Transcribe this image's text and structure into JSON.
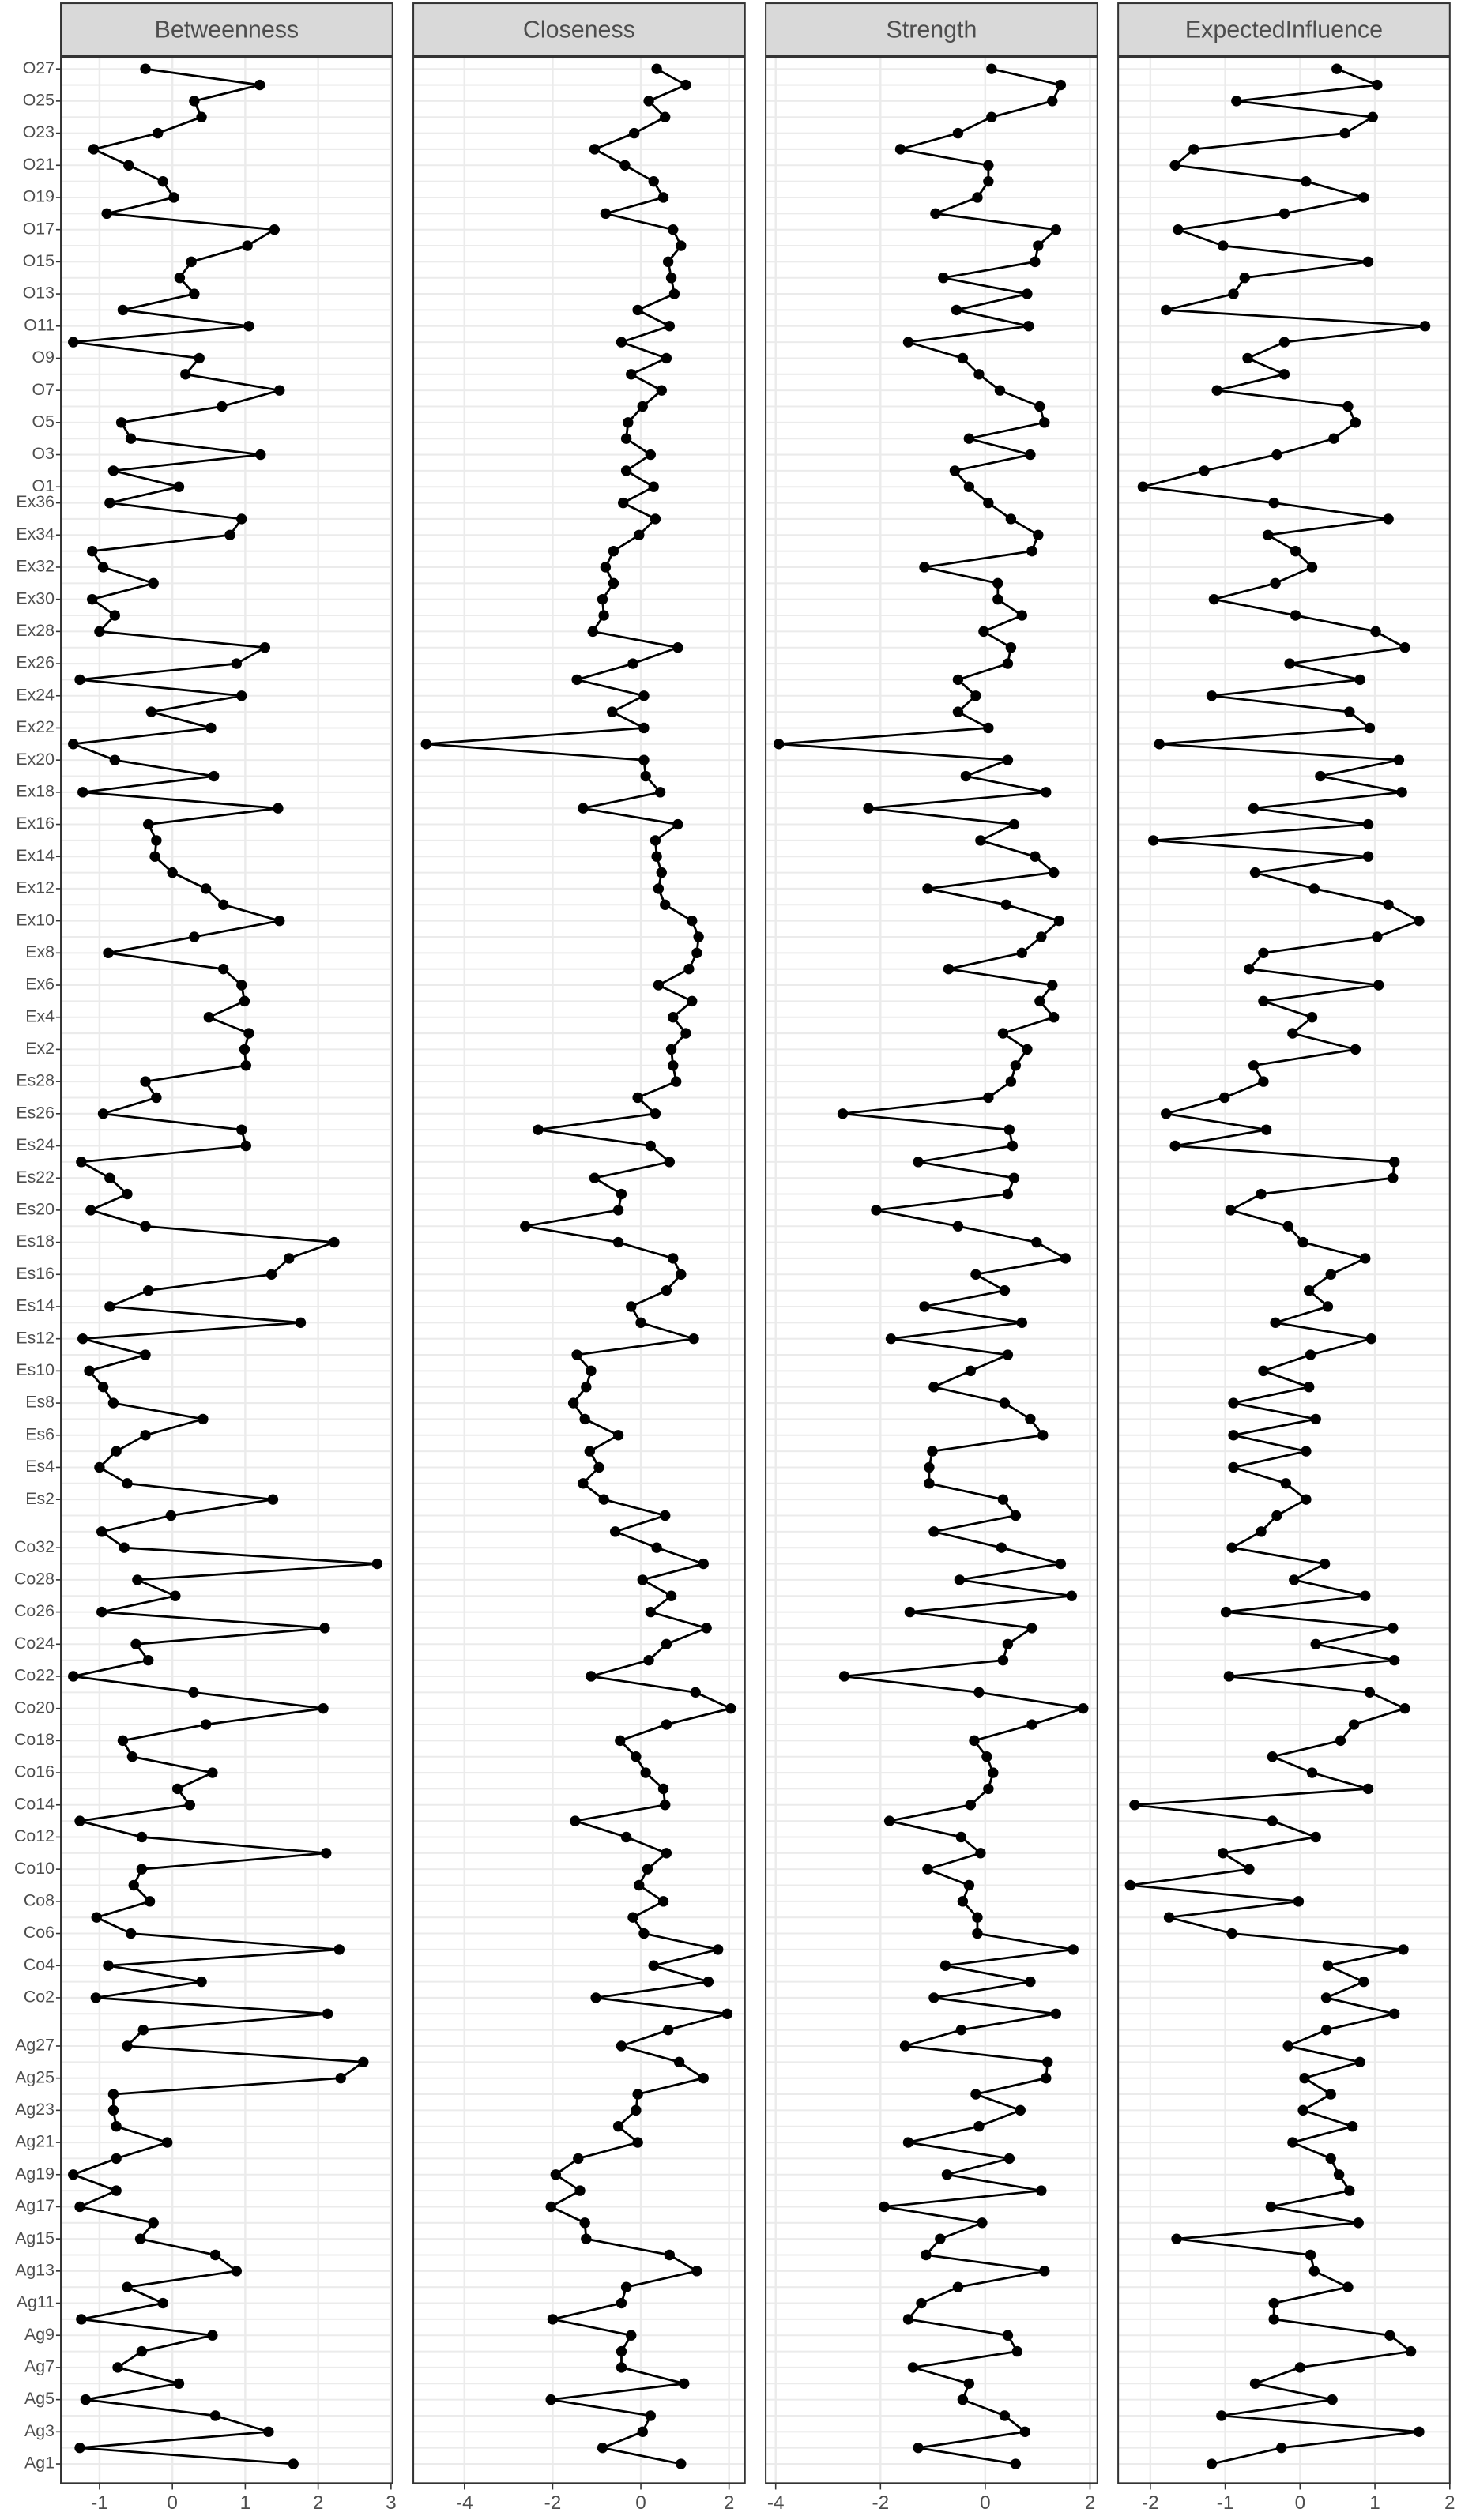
{
  "chart_data": {
    "type": "line",
    "color": "#000000",
    "grid": true,
    "categories": [
      "O27",
      null,
      "O25",
      null,
      "O23",
      null,
      "O21",
      null,
      "O19",
      null,
      "O17",
      null,
      "O15",
      null,
      "O13",
      null,
      "O11",
      null,
      "O9",
      null,
      "O7",
      null,
      "O5",
      null,
      "O3",
      null,
      "O1",
      "Ex36",
      null,
      "Ex34",
      null,
      "Ex32",
      null,
      "Ex30",
      null,
      "Ex28",
      null,
      "Ex26",
      null,
      "Ex24",
      null,
      "Ex22",
      null,
      "Ex20",
      null,
      "Ex18",
      null,
      "Ex16",
      null,
      "Ex14",
      null,
      "Ex12",
      null,
      "Ex10",
      null,
      "Ex8",
      null,
      "Ex6",
      null,
      "Ex4",
      null,
      "Ex2",
      null,
      "Es28",
      null,
      "Es26",
      null,
      "Es24",
      null,
      "Es22",
      null,
      "Es20",
      null,
      "Es18",
      null,
      "Es16",
      null,
      "Es14",
      null,
      "Es12",
      null,
      "Es10",
      null,
      "Es8",
      null,
      "Es6",
      null,
      "Es4",
      null,
      "Es2",
      null,
      null,
      "Co32",
      null,
      "Co28",
      null,
      "Co26",
      null,
      "Co24",
      null,
      "Co22",
      null,
      "Co20",
      null,
      "Co18",
      null,
      "Co16",
      null,
      "Co14",
      null,
      "Co12",
      null,
      "Co10",
      null,
      "Co8",
      null,
      "Co6",
      null,
      "Co4",
      null,
      "Co2",
      null,
      null,
      "Ag27",
      null,
      "Ag25",
      null,
      "Ag23",
      null,
      "Ag21",
      null,
      "Ag19",
      null,
      "Ag17",
      null,
      "Ag15",
      null,
      "Ag13",
      null,
      "Ag11",
      null,
      "Ag9",
      null,
      "Ag7",
      null,
      "Ag5",
      null,
      "Ag3",
      null,
      "Ag1"
    ],
    "series": [
      {
        "name": "Betweenness",
        "xlim": [
          -1.53,
          3.02
        ],
        "xticks": [
          -1,
          0,
          1,
          2,
          3
        ],
        "values": [
          -0.37,
          1.2,
          0.3,
          0.4,
          -0.2,
          -1.08,
          -0.6,
          -0.13,
          0.02,
          -0.9,
          1.4,
          1.03,
          0.26,
          0.1,
          0.3,
          -0.68,
          1.05,
          -1.36,
          0.37,
          0.18,
          1.47,
          0.68,
          -0.7,
          -0.57,
          1.21,
          -0.81,
          0.09,
          -0.86,
          0.95,
          0.79,
          -1.1,
          -0.95,
          -0.26,
          -1.1,
          -0.79,
          -1.0,
          1.27,
          0.88,
          -1.27,
          0.95,
          -0.29,
          0.53,
          -1.36,
          -0.79,
          0.57,
          -1.23,
          1.45,
          -0.33,
          -0.22,
          -0.24,
          0,
          0.46,
          0.7,
          1.47,
          0.3,
          -0.88,
          0.7,
          0.95,
          0.99,
          0.5,
          1.05,
          0.99,
          1.01,
          -0.37,
          -0.22,
          -0.95,
          0.95,
          1.01,
          -1.25,
          -0.86,
          -0.62,
          -1.12,
          -0.37,
          2.22,
          1.6,
          1.36,
          -0.33,
          -0.86,
          1.76,
          -1.23,
          -0.37,
          -1.14,
          -0.95,
          -0.81,
          0.42,
          -0.37,
          -0.77,
          -1.0,
          -0.62,
          1.38,
          -0.02,
          -0.97,
          -0.66,
          2.81,
          -0.48,
          0.04,
          -0.97,
          2.09,
          -0.5,
          -0.33,
          -1.36,
          0.29,
          2.07,
          0.46,
          -0.68,
          -0.55,
          0.55,
          0.07,
          0.24,
          -1.27,
          -0.42,
          2.11,
          -0.42,
          -0.53,
          -0.31,
          -1.04,
          -0.57,
          2.29,
          -0.88,
          0.4,
          -1.05,
          2.13,
          -0.4,
          -0.62,
          2.62,
          2.31,
          -0.81,
          -0.81,
          -0.77,
          -0.07,
          -0.77,
          -1.36,
          -0.77,
          -1.27,
          -0.26,
          -0.44,
          0.59,
          0.88,
          -0.62,
          -0.13,
          -1.25,
          0.55,
          -0.42,
          -0.75,
          0.09,
          -1.19,
          0.59,
          1.32,
          -1.27,
          1.66
        ]
      },
      {
        "name": "Closeness",
        "xlim": [
          -5.16,
          2.36
        ],
        "xticks": [
          -4,
          -2,
          0,
          2
        ],
        "values": [
          0.36,
          1.02,
          0.18,
          0.55,
          -0.15,
          -1.05,
          -0.36,
          0.29,
          0.51,
          -0.8,
          0.73,
          0.91,
          0.62,
          0.69,
          0.76,
          -0.07,
          0.65,
          -0.44,
          0.58,
          -0.22,
          0.47,
          0.04,
          -0.29,
          -0.33,
          0.22,
          -0.33,
          0.29,
          -0.4,
          0.33,
          -0.04,
          -0.62,
          -0.8,
          -0.62,
          -0.87,
          -0.84,
          -1.09,
          0.84,
          -0.18,
          -1.45,
          0.07,
          -0.65,
          0.07,
          -4.87,
          0.07,
          0.11,
          0.44,
          -1.31,
          0.84,
          0.33,
          0.36,
          0.47,
          0.4,
          0.55,
          1.16,
          1.31,
          1.27,
          1.09,
          0.4,
          1.16,
          0.73,
          1.02,
          0.69,
          0.73,
          0.8,
          -0.07,
          0.33,
          -2.33,
          0.22,
          0.65,
          -1.05,
          -0.44,
          -0.51,
          -2.62,
          -0.51,
          0.73,
          0.91,
          0.58,
          -0.22,
          0,
          1.2,
          -1.45,
          -1.13,
          -1.24,
          -1.53,
          -1.27,
          -0.51,
          -1.16,
          -0.95,
          -1.31,
          -0.84,
          0.55,
          -0.58,
          0.36,
          1.42,
          0.04,
          0.69,
          0.22,
          1.49,
          0.58,
          0.18,
          -1.13,
          1.24,
          2.04,
          0.58,
          -0.47,
          -0.11,
          0.11,
          0.51,
          0.55,
          -1.49,
          -0.33,
          0.58,
          0.15,
          -0.04,
          0.51,
          -0.18,
          0.07,
          1.75,
          0.29,
          1.53,
          -1.02,
          1.96,
          0.62,
          -0.44,
          0.87,
          1.42,
          -0.07,
          -0.11,
          -0.51,
          -0.07,
          -1.42,
          -1.93,
          -1.38,
          -2.04,
          -1.27,
          -1.24,
          0.65,
          1.27,
          -0.33,
          -0.44,
          -2.0,
          -0.22,
          -0.44,
          -0.44,
          0.98,
          -2.04,
          0.22,
          0.04,
          -0.87,
          0.91
        ]
      },
      {
        "name": "Strength",
        "xlim": [
          -4.19,
          2.14
        ],
        "xticks": [
          -4,
          -2,
          0,
          2
        ],
        "values": [
          0.12,
          1.44,
          1.28,
          0.12,
          -0.52,
          -1.62,
          0.06,
          0.06,
          -0.15,
          -0.95,
          1.35,
          1.01,
          0.95,
          -0.8,
          0.8,
          -0.55,
          0.83,
          -1.47,
          -0.43,
          -0.12,
          0.28,
          1.04,
          1.13,
          -0.31,
          0.86,
          -0.58,
          -0.31,
          0.06,
          0.49,
          1.01,
          0.89,
          -1.16,
          0.24,
          0.24,
          0.7,
          -0.03,
          0.49,
          0.43,
          -0.52,
          -0.18,
          -0.52,
          0.06,
          -3.94,
          0.43,
          -0.37,
          1.16,
          -2.23,
          0.55,
          -0.09,
          0.95,
          1.31,
          -1.1,
          0.4,
          1.41,
          1.07,
          0.7,
          -0.7,
          1.28,
          1.04,
          1.31,
          0.34,
          0.8,
          0.58,
          0.49,
          0.06,
          -2.72,
          0.46,
          0.52,
          -1.28,
          0.55,
          0.43,
          -2.08,
          -0.52,
          0.98,
          1.53,
          -0.18,
          0.37,
          -1.16,
          0.7,
          -1.8,
          0.43,
          -0.28,
          -0.98,
          0.37,
          0.86,
          1.1,
          -1.01,
          -1.07,
          -1.07,
          0.34,
          0.58,
          -0.98,
          0.31,
          1.44,
          -0.49,
          1.65,
          -1.44,
          0.89,
          0.43,
          0.34,
          -2.69,
          -0.12,
          1.87,
          0.89,
          -0.21,
          0.03,
          0.15,
          0.06,
          -0.28,
          -1.83,
          -0.46,
          -0.09,
          -1.1,
          -0.31,
          -0.43,
          -0.15,
          -0.15,
          1.68,
          -0.76,
          0.86,
          -0.98,
          1.35,
          -0.46,
          -1.53,
          1.19,
          1.16,
          -0.18,
          0.67,
          -0.12,
          -1.47,
          0.46,
          -0.73,
          1.07,
          -1.93,
          -0.06,
          -0.86,
          -1.13,
          1.13,
          -0.52,
          -1.22,
          -1.47,
          0.43,
          0.61,
          -1.38,
          -0.31,
          -0.43,
          0.37,
          0.76,
          -1.28,
          0.58
        ]
      },
      {
        "name": "ExpectedInfluence",
        "xlim": [
          -2.43,
          2.0
        ],
        "xticks": [
          -2,
          -1,
          0,
          1,
          2
        ],
        "values": [
          0.49,
          1.03,
          -0.85,
          0.97,
          0.6,
          -1.42,
          -1.67,
          0.08,
          0.85,
          -0.21,
          -1.63,
          -1.03,
          0.91,
          -0.74,
          -0.89,
          -1.79,
          1.67,
          -0.21,
          -0.7,
          -0.21,
          -1.11,
          0.64,
          0.74,
          0.45,
          -0.31,
          -1.28,
          -2.1,
          -0.35,
          1.18,
          -0.43,
          -0.06,
          0.16,
          -0.33,
          -1.15,
          -0.06,
          1.01,
          1.4,
          -0.14,
          0.8,
          -1.18,
          0.66,
          0.93,
          -1.88,
          1.32,
          0.27,
          1.36,
          -0.62,
          0.91,
          -1.96,
          0.91,
          -0.6,
          0.19,
          1.18,
          1.59,
          1.03,
          -0.49,
          -0.68,
          1.05,
          -0.49,
          0.16,
          -0.1,
          0.74,
          -0.62,
          -0.49,
          -1.01,
          -1.79,
          -0.45,
          -1.67,
          1.26,
          1.24,
          -0.52,
          -0.93,
          -0.16,
          0.04,
          0.87,
          0.41,
          0.12,
          0.37,
          -0.33,
          0.95,
          0.14,
          -0.49,
          0.12,
          -0.89,
          0.21,
          -0.89,
          0.08,
          -0.89,
          -0.19,
          0.08,
          -0.31,
          -0.52,
          -0.91,
          0.33,
          -0.08,
          0.87,
          -0.99,
          1.24,
          0.21,
          1.26,
          -0.95,
          0.93,
          1.4,
          0.72,
          0.54,
          -0.37,
          0.16,
          0.91,
          -2.21,
          -0.37,
          0.21,
          -1.03,
          -0.68,
          -2.27,
          -0.02,
          -1.75,
          -0.91,
          1.38,
          0.37,
          0.85,
          0.35,
          1.26,
          0.35,
          -0.16,
          0.8,
          0.06,
          0.41,
          0.04,
          0.7,
          -0.1,
          0.41,
          0.52,
          0.66,
          -0.39,
          0.78,
          -1.65,
          0.14,
          0.19,
          0.64,
          -0.35,
          -0.35,
          1.2,
          1.48,
          0,
          -0.6,
          0.43,
          -1.05,
          1.59,
          -0.25,
          -1.18
        ]
      }
    ]
  }
}
